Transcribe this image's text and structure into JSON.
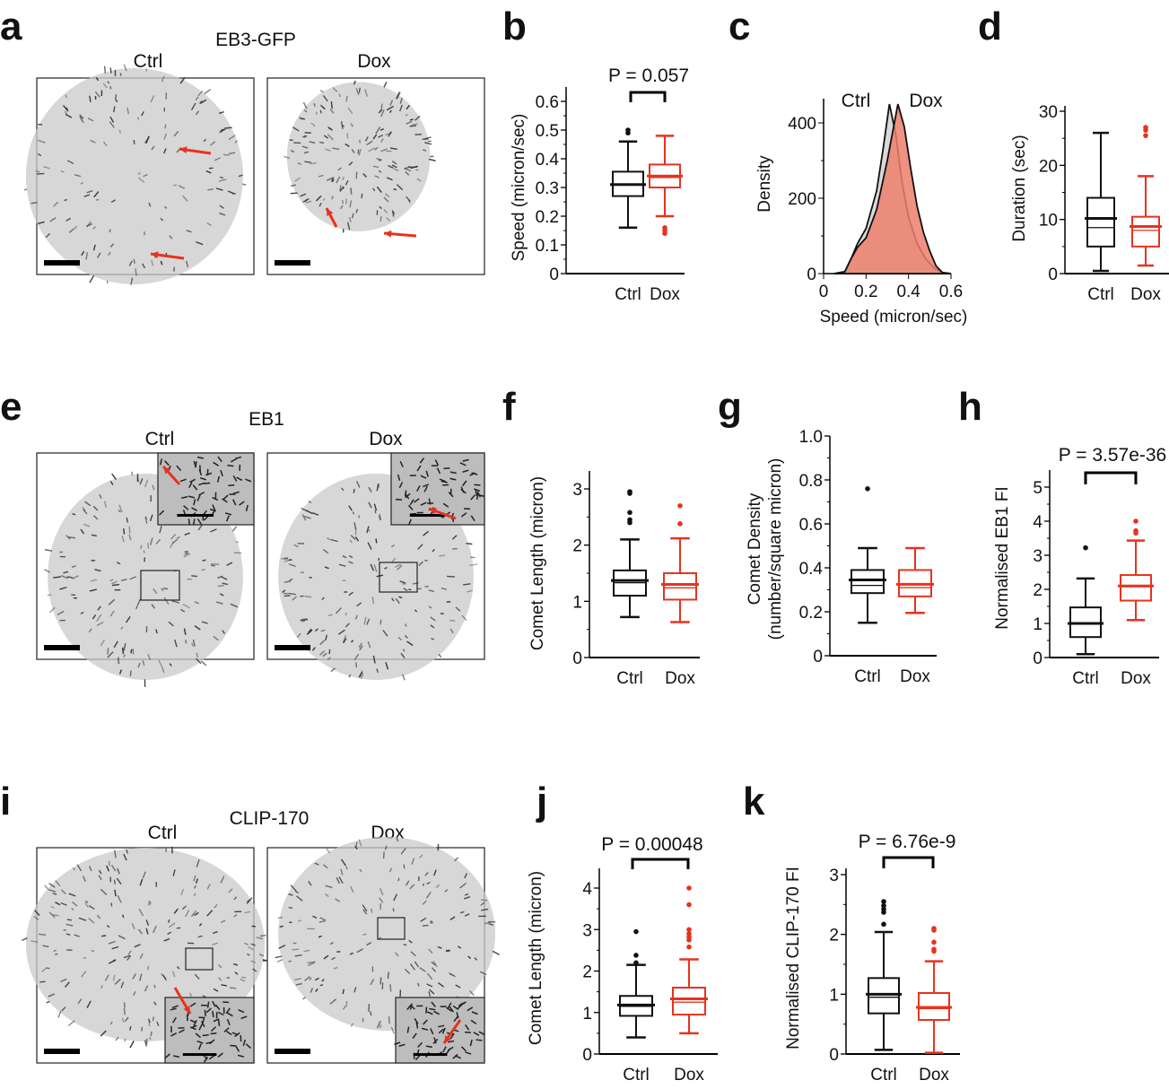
{
  "colors": {
    "ctrl": "#111111",
    "dox": "#e8321e",
    "ctrl_fill": "#d9d9d9",
    "dox_fill": "#ec7f6c"
  },
  "panels": {
    "a": {
      "letter": "a",
      "title": "EB3-GFP",
      "left": "Ctrl",
      "right": "Dox"
    },
    "b": {
      "letter": "b"
    },
    "c": {
      "letter": "c"
    },
    "d": {
      "letter": "d"
    },
    "e": {
      "letter": "e",
      "title": "EB1",
      "left": "Ctrl",
      "right": "Dox"
    },
    "f": {
      "letter": "f"
    },
    "g": {
      "letter": "g"
    },
    "h": {
      "letter": "h"
    },
    "i": {
      "letter": "i",
      "title": "CLIP-170",
      "left": "Ctrl",
      "right": "Dox"
    },
    "j": {
      "letter": "j"
    },
    "k": {
      "letter": "k"
    }
  },
  "chart_data": [
    {
      "panel": "b",
      "type": "box",
      "ylabel": "Speed (micron/sec)",
      "ylim": [
        0,
        0.65
      ],
      "yticks": [
        "0",
        "0.1",
        "0.2",
        "0.3",
        "0.4",
        "0.5",
        "0.6"
      ],
      "categories": [
        "Ctrl",
        "Dox"
      ],
      "pvalue": "P = 0.057",
      "series": [
        {
          "whisker_low": 0.16,
          "q1": 0.27,
          "median": 0.31,
          "mean": 0.31,
          "q3": 0.355,
          "whisker_high": 0.46,
          "outliers": [
            0.49,
            0.5
          ]
        },
        {
          "whisker_low": 0.2,
          "q1": 0.3,
          "median": 0.335,
          "mean": 0.34,
          "q3": 0.38,
          "whisker_high": 0.48,
          "outliers": [
            0.16,
            0.15,
            0.14
          ]
        }
      ]
    },
    {
      "panel": "c",
      "type": "area",
      "ylabel": "Density",
      "xlabel": "Speed (micron/sec)",
      "xlim": [
        0,
        0.6
      ],
      "ylim": [
        0,
        460
      ],
      "xticks": [
        "0",
        "0.2",
        "0.4",
        "0.6"
      ],
      "yticks": [
        "0",
        "200",
        "400"
      ],
      "series": [
        {
          "name": "Ctrl",
          "x": [
            0.05,
            0.1,
            0.13,
            0.16,
            0.2,
            0.25,
            0.28,
            0.31,
            0.34,
            0.37,
            0.4,
            0.44,
            0.48,
            0.52,
            0.56,
            0.6
          ],
          "y": [
            0,
            5,
            40,
            80,
            120,
            220,
            330,
            450,
            370,
            240,
            150,
            80,
            40,
            15,
            2,
            0
          ]
        },
        {
          "name": "Dox",
          "x": [
            0.05,
            0.1,
            0.13,
            0.16,
            0.2,
            0.25,
            0.3,
            0.35,
            0.38,
            0.41,
            0.44,
            0.47,
            0.5,
            0.53,
            0.56,
            0.6
          ],
          "y": [
            0,
            5,
            40,
            70,
            95,
            170,
            300,
            450,
            390,
            280,
            180,
            110,
            60,
            20,
            3,
            0
          ]
        }
      ]
    },
    {
      "panel": "d",
      "type": "box",
      "ylabel": "Duration (sec)",
      "ylim": [
        0,
        30
      ],
      "yticks": [
        "0",
        "10",
        "20",
        "30"
      ],
      "categories": [
        "Ctrl",
        "Dox"
      ],
      "series": [
        {
          "whisker_low": 0.5,
          "q1": 5,
          "median": 8.5,
          "mean": 10.2,
          "q3": 14,
          "whisker_high": 26,
          "outliers": []
        },
        {
          "whisker_low": 1.5,
          "q1": 5,
          "median": 8,
          "mean": 8.7,
          "q3": 10.5,
          "whisker_high": 18,
          "outliers": [
            27,
            26.5,
            25.5
          ]
        }
      ]
    },
    {
      "panel": "f",
      "type": "box",
      "ylabel": "Comet Length (micron)",
      "ylim": [
        0,
        3.3
      ],
      "yticks": [
        "0",
        "1",
        "2",
        "3"
      ],
      "categories": [
        "Ctrl",
        "Dox"
      ],
      "series": [
        {
          "whisker_low": 0.72,
          "q1": 1.1,
          "median": 1.33,
          "mean": 1.37,
          "q3": 1.55,
          "whisker_high": 2.1,
          "outliers": [
            2.95,
            2.92,
            2.58,
            2.45,
            2.4
          ]
        },
        {
          "whisker_low": 0.63,
          "q1": 1.03,
          "median": 1.24,
          "mean": 1.3,
          "q3": 1.5,
          "whisker_high": 2.12,
          "outliers": [
            2.7,
            2.38
          ]
        }
      ]
    },
    {
      "panel": "g",
      "type": "box",
      "ylabel": "Comet Density",
      "ylabel2": "(number/square micron)",
      "ylim": [
        0,
        1.0
      ],
      "yticks": [
        "0",
        "0.2",
        "0.4",
        "0.6",
        "0.8",
        "1.0"
      ],
      "categories": [
        "Ctrl",
        "Dox"
      ],
      "series": [
        {
          "whisker_low": 0.15,
          "q1": 0.285,
          "median": 0.32,
          "mean": 0.345,
          "q3": 0.39,
          "whisker_high": 0.49,
          "outliers": [
            0.76
          ]
        },
        {
          "whisker_low": 0.195,
          "q1": 0.27,
          "median": 0.31,
          "mean": 0.325,
          "q3": 0.39,
          "whisker_high": 0.49,
          "outliers": []
        }
      ]
    },
    {
      "panel": "h",
      "type": "box",
      "ylabel": "Normalised EB1 FI",
      "ylim": [
        0,
        5.5
      ],
      "yticks": [
        "0",
        "1",
        "2",
        "3",
        "4",
        "5"
      ],
      "categories": [
        "Ctrl",
        "Dox"
      ],
      "pvalue": "P = 3.57e-36",
      "series": [
        {
          "whisker_low": 0.1,
          "q1": 0.6,
          "median": 1.0,
          "mean": 1.0,
          "q3": 1.47,
          "whisker_high": 2.32,
          "outliers": [
            3.22
          ]
        },
        {
          "whisker_low": 1.1,
          "q1": 1.67,
          "median": 2.08,
          "mean": 2.1,
          "q3": 2.42,
          "whisker_high": 3.43,
          "outliers": [
            4.0,
            3.72,
            3.65
          ]
        }
      ]
    },
    {
      "panel": "j",
      "type": "box",
      "ylabel": "Comet Length (micron)",
      "ylim": [
        0,
        4.5
      ],
      "yticks": [
        "0",
        "1",
        "2",
        "3",
        "4"
      ],
      "categories": [
        "Ctrl",
        "Dox"
      ],
      "pvalue": "P = 0.00048",
      "series": [
        {
          "whisker_low": 0.4,
          "q1": 0.92,
          "median": 1.15,
          "mean": 1.18,
          "q3": 1.4,
          "whisker_high": 2.15,
          "outliers": [
            2.95,
            2.38,
            2.2
          ]
        },
        {
          "whisker_low": 0.5,
          "q1": 0.95,
          "median": 1.25,
          "mean": 1.33,
          "q3": 1.6,
          "whisker_high": 2.28,
          "outliers": [
            4.0,
            3.6,
            3.0,
            2.9,
            2.82,
            2.75,
            2.58
          ]
        }
      ]
    },
    {
      "panel": "k",
      "type": "box",
      "ylabel": "Normalised CLIP-170 FI",
      "ylim": [
        0,
        3.0
      ],
      "yticks": [
        "0",
        "1",
        "2",
        "3"
      ],
      "categories": [
        "Ctrl",
        "Dox"
      ],
      "pvalue": "P = 6.76e-9",
      "series": [
        {
          "whisker_low": 0.07,
          "q1": 0.68,
          "median": 0.95,
          "mean": 1.0,
          "q3": 1.27,
          "whisker_high": 2.04,
          "outliers": [
            2.55,
            2.48,
            2.42,
            2.37,
            2.17
          ]
        },
        {
          "whisker_low": 0.02,
          "q1": 0.57,
          "median": 0.76,
          "mean": 0.78,
          "q3": 1.02,
          "whisker_high": 1.55,
          "outliers": [
            2.1,
            2.07,
            1.87,
            1.75,
            1.72
          ]
        }
      ]
    }
  ]
}
